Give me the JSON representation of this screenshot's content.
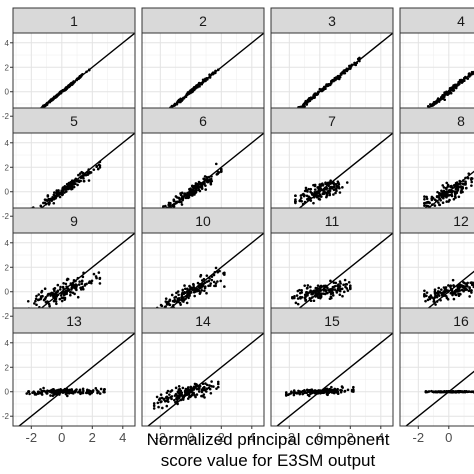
{
  "chart_data": {
    "type": "scatter",
    "title": "",
    "xlabel": [
      "Normalized principal component",
      "score value for E3SM output"
    ],
    "ylabel": "",
    "xlim": [
      -3.2,
      4.8
    ],
    "ylim": [
      -2.8,
      4.8
    ],
    "x_ticks": [
      -2,
      0,
      2,
      4
    ],
    "x_tick_labels": [
      "-2",
      "0",
      "2",
      "4"
    ],
    "y_ticks": [
      -2,
      0,
      2,
      4
    ],
    "y_tick_labels": [
      "-2",
      "0",
      "2",
      "4"
    ],
    "grid": true,
    "reference_line": "y = x",
    "facet_layout": {
      "rows": 4,
      "cols": 4
    },
    "panels": [
      {
        "label": "1",
        "x_range": [
          -1.8,
          1.8
        ],
        "slope": 1.0,
        "spread": 0.05
      },
      {
        "label": "2",
        "x_range": [
          -1.8,
          1.8
        ],
        "slope": 1.0,
        "spread": 0.07
      },
      {
        "label": "3",
        "x_range": [
          -2.3,
          2.6
        ],
        "slope": 1.0,
        "spread": 0.08
      },
      {
        "label": "4",
        "x_range": [
          -1.5,
          1.8
        ],
        "slope": 1.0,
        "spread": 0.1
      },
      {
        "label": "5",
        "x_range": [
          -2.0,
          2.5
        ],
        "slope": 0.85,
        "spread": 0.2
      },
      {
        "label": "6",
        "x_range": [
          -1.8,
          2.0
        ],
        "slope": 0.85,
        "spread": 0.25
      },
      {
        "label": "7",
        "x_range": [
          -1.6,
          1.8
        ],
        "slope": 0.45,
        "spread": 0.35
      },
      {
        "label": "8",
        "x_range": [
          -1.6,
          1.8
        ],
        "slope": 0.6,
        "spread": 0.35
      },
      {
        "label": "9",
        "x_range": [
          -2.2,
          2.5
        ],
        "slope": 0.45,
        "spread": 0.35
      },
      {
        "label": "10",
        "x_range": [
          -2.2,
          2.2
        ],
        "slope": 0.65,
        "spread": 0.35
      },
      {
        "label": "11",
        "x_range": [
          -1.8,
          2.0
        ],
        "slope": 0.25,
        "spread": 0.3
      },
      {
        "label": "12",
        "x_range": [
          -1.6,
          2.0
        ],
        "slope": 0.3,
        "spread": 0.3
      },
      {
        "label": "13",
        "x_range": [
          -2.3,
          2.8
        ],
        "slope": 0.02,
        "spread": 0.12
      },
      {
        "label": "14",
        "x_range": [
          -2.4,
          1.8
        ],
        "slope": 0.35,
        "spread": 0.3
      },
      {
        "label": "15",
        "x_range": [
          -2.2,
          2.2
        ],
        "slope": 0.05,
        "spread": 0.12
      },
      {
        "label": "16",
        "x_range": [
          -1.5,
          1.8
        ],
        "slope": 0.0,
        "spread": 0.02
      }
    ],
    "points_per_panel": 160
  }
}
